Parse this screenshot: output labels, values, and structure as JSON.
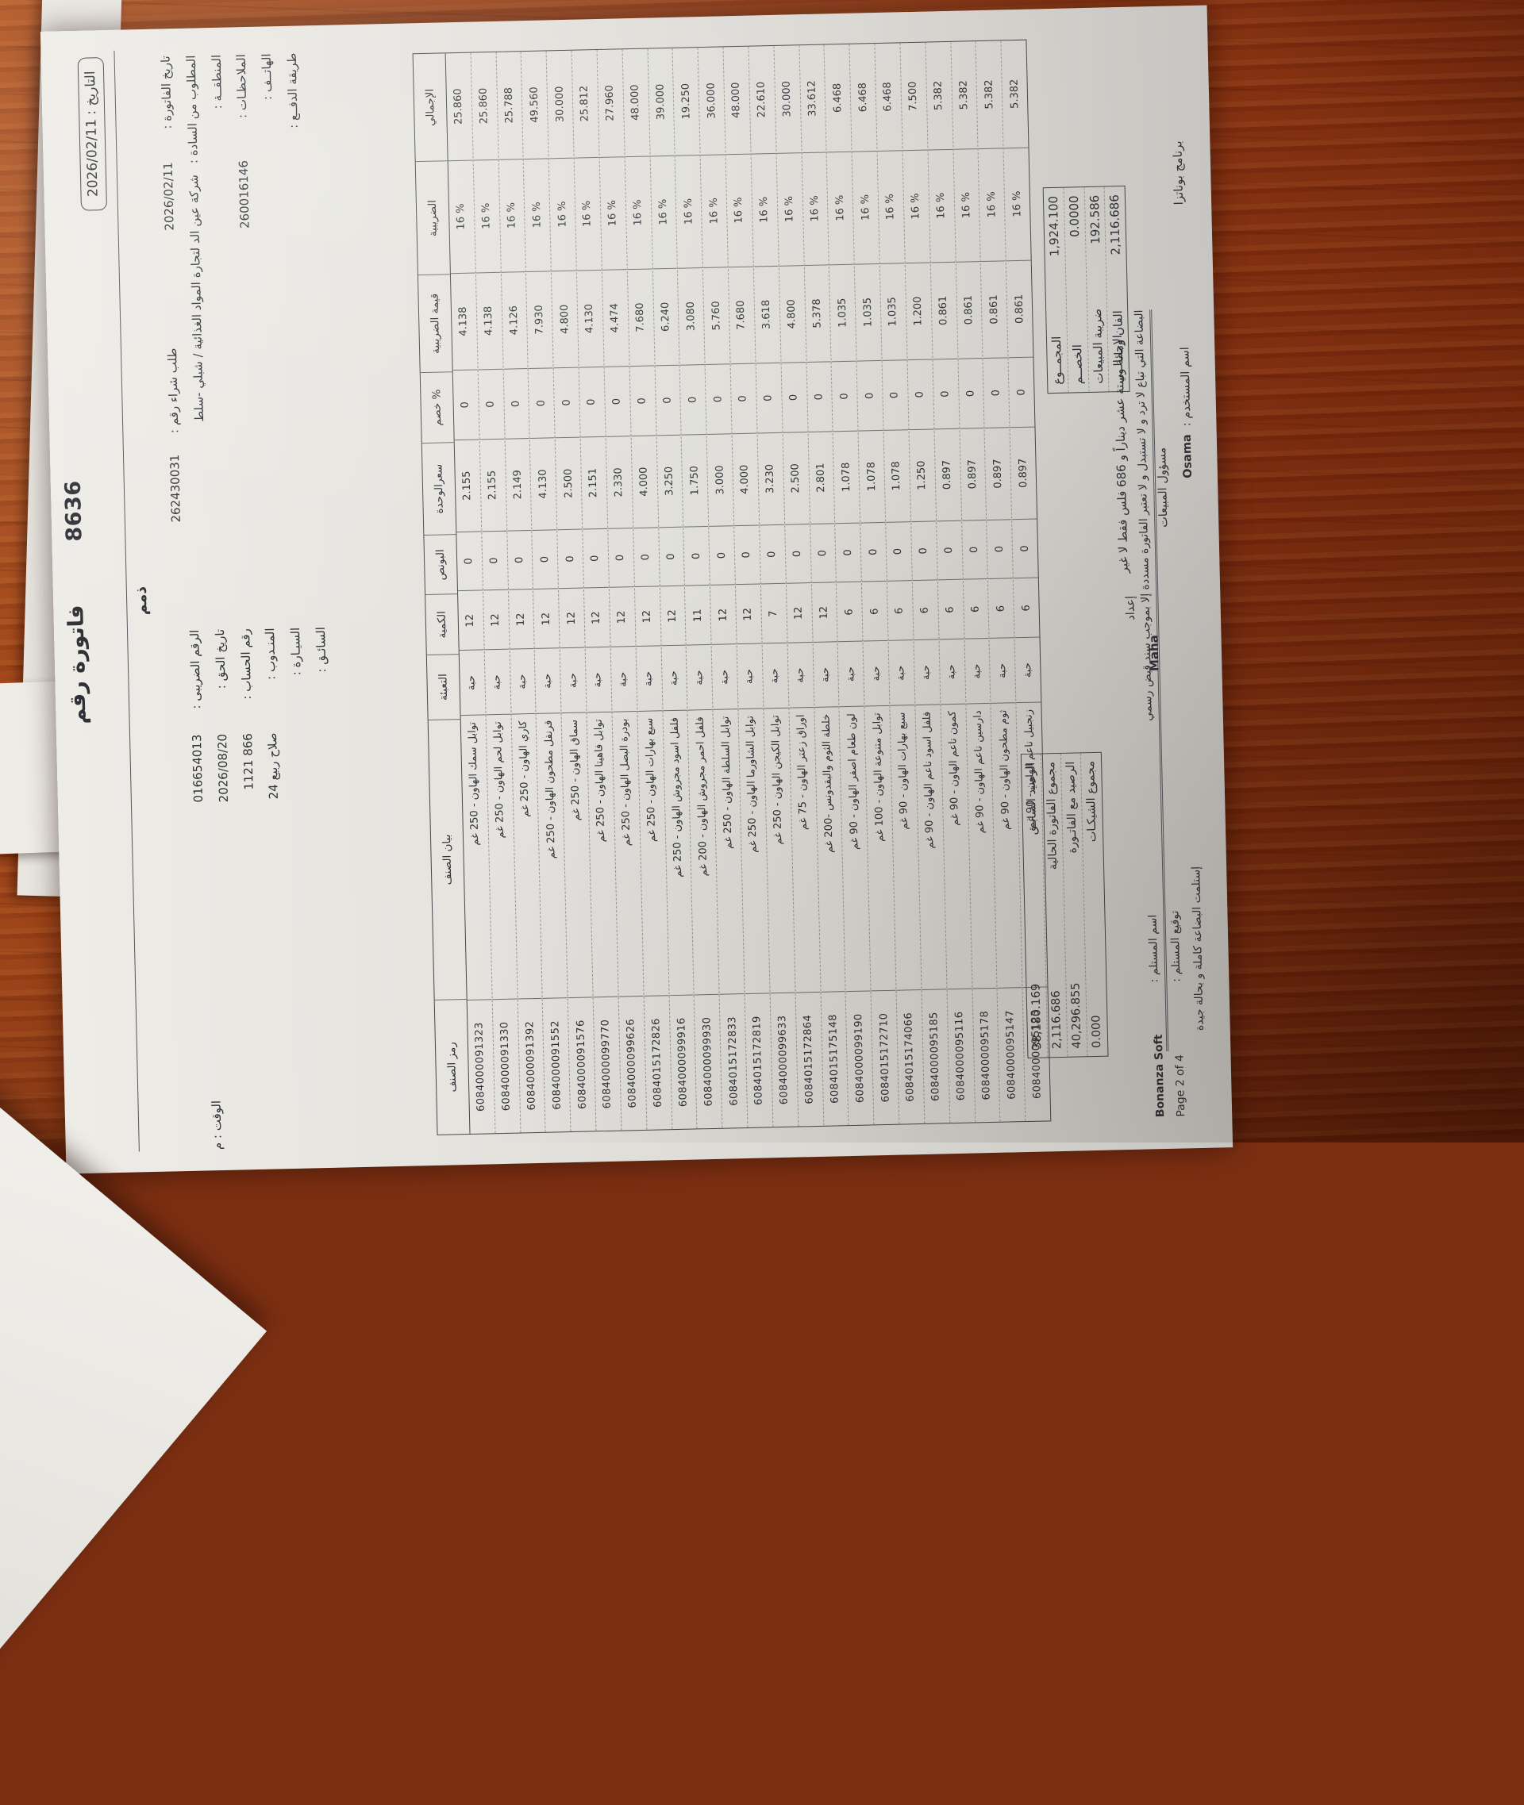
{
  "page": {
    "date_label": "التاريخ :",
    "date_value": "2026/02/11",
    "time_label": "الوقت :",
    "time_value": "م",
    "title": "فاتورة رقم",
    "invoice_no": "8636",
    "payment_type": "ذمم"
  },
  "fields_right": [
    {
      "label": "تاريخ الفاتورة :",
      "value": "2026/02/11",
      "extra_label": "طلب شراء رقم :",
      "extra_value": "262430031"
    },
    {
      "label": "المطلوب من السادة :",
      "value": "شركة عين الد لتجارة المواد الغذائية / شبلي -سلط"
    },
    {
      "label": "المنطقــة :",
      "value": ""
    },
    {
      "label": "الملاحظـات :",
      "value": "260016146"
    },
    {
      "label": "الهاتــف :",
      "value": ""
    },
    {
      "label": "طريقة الدفــع :",
      "value": ""
    }
  ],
  "fields_left": [
    {
      "label": "الرقم الضريبى :",
      "value": "016654013"
    },
    {
      "label": "تاريخ الحق :",
      "value": "2026/08/20"
    },
    {
      "label": "رقم الحساب :",
      "value": "1121    866"
    },
    {
      "label": "المنـدوب :",
      "value": "24    صلاح ربيع"
    },
    {
      "label": "السيـارة :",
      "value": ""
    },
    {
      "label": "السائـق :",
      "value": ""
    }
  ],
  "table": {
    "headers": [
      "رمز الصنف",
      "بيان الصنف",
      "التعبئة",
      "الكمية",
      "البونص",
      "سعرالوحدة",
      "خصم %",
      "قيمة الضريبية",
      "الضريبية",
      "الإجمالي"
    ],
    "rows": [
      [
        "6084000091323",
        "توابل سمك الهاون - 250 غم",
        "حبة",
        "12",
        "0",
        "2.155",
        "0",
        "4.138",
        "16 %",
        "25.860"
      ],
      [
        "6084000091330",
        "توابل لحم الهاون - 250 غم",
        "حبة",
        "12",
        "0",
        "2.155",
        "0",
        "4.138",
        "16 %",
        "25.860"
      ],
      [
        "6084000091392",
        "كاري الهاون - 250 غم",
        "حبة",
        "12",
        "0",
        "2.149",
        "0",
        "4.126",
        "16 %",
        "25.788"
      ],
      [
        "6084000091552",
        "قرنفل مطحون الهاون - 250 غم",
        "حبة",
        "12",
        "0",
        "4.130",
        "0",
        "7.930",
        "16 %",
        "49.560"
      ],
      [
        "6084000091576",
        "سماق الهاون - 250 غم",
        "حبة",
        "12",
        "0",
        "2.500",
        "0",
        "4.800",
        "16 %",
        "30.000"
      ],
      [
        "6084000099770",
        "توابل فاهيتا الهاون - 250 غم",
        "حبة",
        "12",
        "0",
        "2.151",
        "0",
        "4.130",
        "16 %",
        "25.812"
      ],
      [
        "6084000099626",
        "بودرة البصل الهاون - 250 غم",
        "حبة",
        "12",
        "0",
        "2.330",
        "0",
        "4.474",
        "16 %",
        "27.960"
      ],
      [
        "6084015172826",
        "سبع بهارات الهاون - 250 غم",
        "حبة",
        "12",
        "0",
        "4.000",
        "0",
        "7.680",
        "16 %",
        "48.000"
      ],
      [
        "6084000099916",
        "فلفل اسود مجروش الهاون - 250 غم",
        "حبة",
        "12",
        "0",
        "3.250",
        "0",
        "6.240",
        "16 %",
        "39.000"
      ],
      [
        "6084000099930",
        "فلفل احمر مجروش الهاون - 200 غم",
        "حبة",
        "11",
        "0",
        "1.750",
        "0",
        "3.080",
        "16 %",
        "19.250"
      ],
      [
        "6084015172833",
        "توابل السلطة الهاون - 250 غم",
        "حبة",
        "12",
        "0",
        "3.000",
        "0",
        "5.760",
        "16 %",
        "36.000"
      ],
      [
        "6084015172819",
        "توابل الشاورما الهاون - 250 غم",
        "حبة",
        "12",
        "0",
        "4.000",
        "0",
        "7.680",
        "16 %",
        "48.000"
      ],
      [
        "6084000099633",
        "توابل الكيجن الهاون - 250 غم",
        "حبة",
        "7",
        "0",
        "3.230",
        "0",
        "3.618",
        "16 %",
        "22.610"
      ],
      [
        "6084015172864",
        "اوراق زعتر الهاون - 75 غم",
        "حبة",
        "12",
        "0",
        "2.500",
        "0",
        "4.800",
        "16 %",
        "30.000"
      ],
      [
        "6084015175148",
        "خلطة الثوم والبقدونس -200 غم",
        "حبة",
        "12",
        "0",
        "2.801",
        "0",
        "5.378",
        "16 %",
        "33.612"
      ],
      [
        "6084000099190",
        "لون طعام اصفر الهاون - 90 غم",
        "حبة",
        "6",
        "0",
        "1.078",
        "0",
        "1.035",
        "16 %",
        "6.468"
      ],
      [
        "6084015172710",
        "توابل متنوعة الهاون - 100 غم",
        "حبة",
        "6",
        "0",
        "1.078",
        "0",
        "1.035",
        "16 %",
        "6.468"
      ],
      [
        "6084015174066",
        "سبع بهارات الهاون - 90 غم",
        "حبة",
        "6",
        "0",
        "1.078",
        "0",
        "1.035",
        "16 %",
        "6.468"
      ],
      [
        "6084000095185",
        "فلفل اسود ناعم الهاون - 90 غم",
        "حبة",
        "6",
        "0",
        "1.250",
        "0",
        "1.200",
        "16 %",
        "7.500"
      ],
      [
        "6084000095116",
        "كمون ناعم الهاون - 90 غم",
        "حبة",
        "6",
        "0",
        "0.897",
        "0",
        "0.861",
        "16 %",
        "5.382"
      ],
      [
        "6084000095178",
        "دارسين ناعم الهاون - 90 غم",
        "حبة",
        "6",
        "0",
        "0.897",
        "0",
        "0.861",
        "16 %",
        "5.382"
      ],
      [
        "6084000095147",
        "ثوم مطحون الهاون - 90 غم",
        "حبة",
        "6",
        "0",
        "0.897",
        "0",
        "0.861",
        "16 %",
        "5.382"
      ],
      [
        "6084000095123",
        "زنجبيل ناعم الهاون - 90 غم",
        "حبة",
        "6",
        "0",
        "0.897",
        "0",
        "0.861",
        "16 %",
        "5.382"
      ]
    ]
  },
  "totals": [
    {
      "label": "المجمــوع",
      "value": "1,924.100"
    },
    {
      "label": "الخصــم",
      "value": "0.0000"
    },
    {
      "label": "ضريبة المبيعات",
      "value": "192.586"
    },
    {
      "label": "الإجمالــي",
      "value": "2,116.686"
    }
  ],
  "balance": [
    {
      "label": "الرصيد السابـق",
      "value": "38,180.169"
    },
    {
      "label": "مجموع الفاتورة الحالية",
      "value": "2,116.686"
    },
    {
      "label": "الرصيد مع الفاتـورة",
      "value": "40,296.855"
    },
    {
      "label": "مجموع الشيكـات",
      "value": "0.000"
    }
  ],
  "amount_in_words": "الفان ومائة وستة عشر ديناراً و 686 فلس فقط لا غير",
  "notes_line": "البضاعة التي تباع لا ترد و لا تستبدل و لا تعتبر الفاتورة مسددة إلا بموجب سند قبض رسمي",
  "footer": {
    "received_note": "إستلمت البضاعة كاملة و بحالة جيدة",
    "receiver_name_label": "اسم المستلم :",
    "receiver_sign_label": "توقيع المستلم :",
    "prepared_label": "إعداد",
    "prepared_value": "Maha",
    "sales_officer": "مسؤول المبيعات",
    "program": "برنامج بوناتزا",
    "user_label": "اسم المستخدم :",
    "user_value": "Osama",
    "app_name": "Bonanza Soft",
    "page_info": "Page 2 of 4"
  }
}
